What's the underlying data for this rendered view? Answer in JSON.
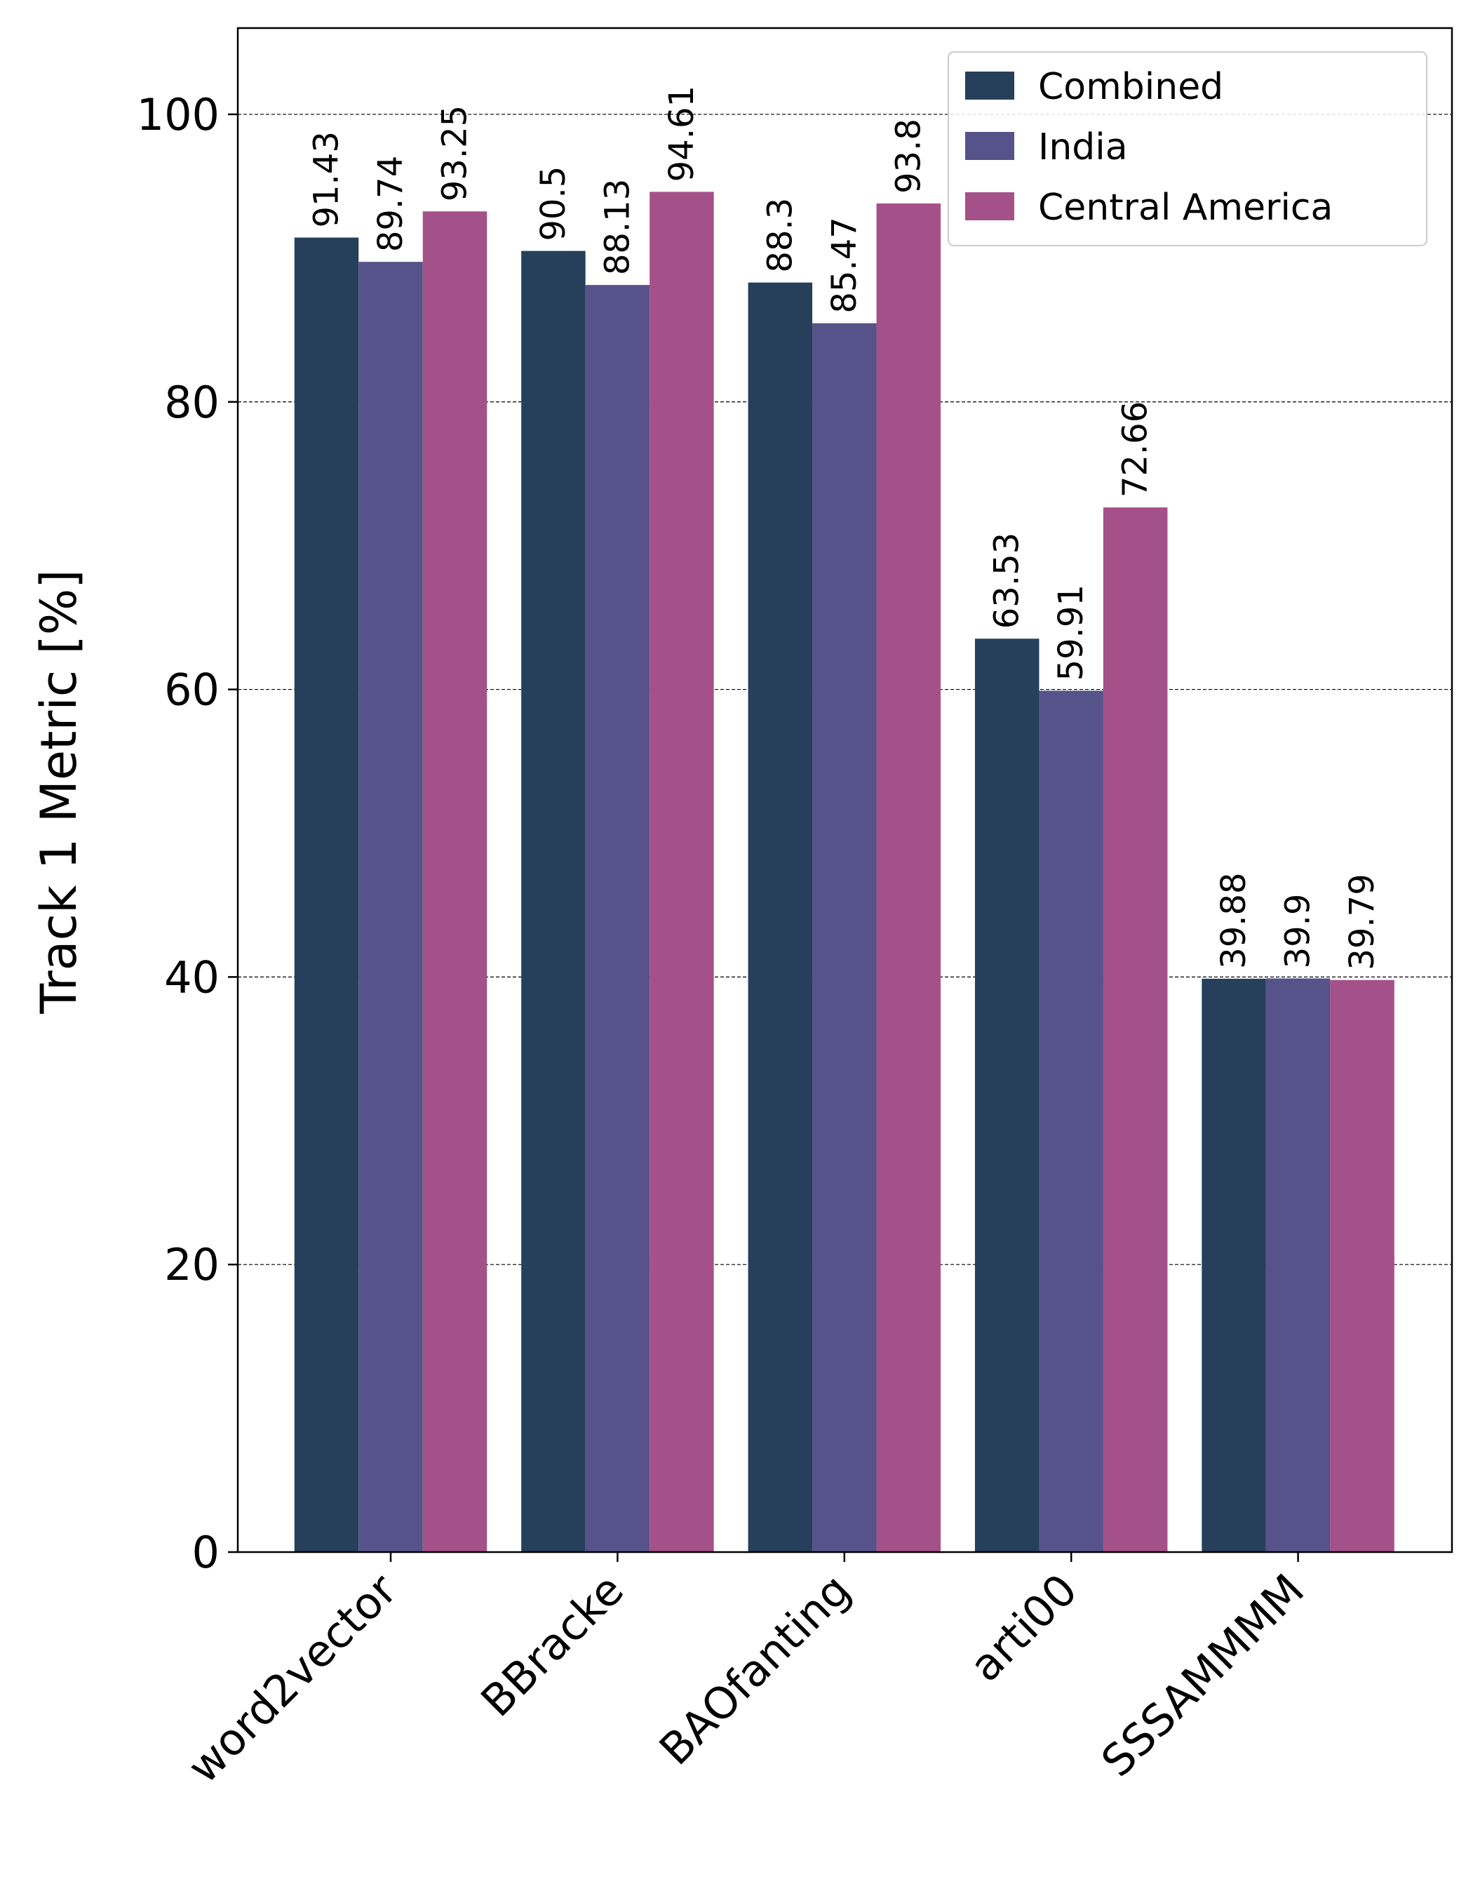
{
  "chart_data": {
    "type": "bar",
    "title": "",
    "xlabel": "",
    "ylabel": "Track 1 Metric [%]",
    "ylim": [
      0,
      106
    ],
    "yticks": [
      0,
      20,
      40,
      60,
      80,
      100
    ],
    "grid": "horizontal dashed",
    "legend_position": "top-right",
    "categories": [
      "word2vector",
      "BBracke",
      "BAOfanting",
      "arti00",
      "SSSAMMMM"
    ],
    "series": [
      {
        "name": "Combined",
        "color": "#26405b",
        "values": [
          91.43,
          90.5,
          88.3,
          63.53,
          39.88
        ]
      },
      {
        "name": "India",
        "color": "#56528a",
        "values": [
          89.74,
          88.13,
          85.47,
          59.91,
          39.9
        ]
      },
      {
        "name": "Central America",
        "color": "#a55189",
        "values": [
          93.25,
          94.61,
          93.8,
          72.66,
          39.79
        ]
      }
    ]
  }
}
